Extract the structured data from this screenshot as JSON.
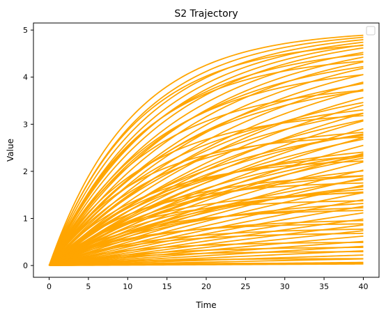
{
  "chart_data": {
    "type": "line",
    "title": "S2 Trajectory",
    "xlabel": "Time",
    "ylabel": "Value",
    "xlim": [
      -2,
      42
    ],
    "ylim": [
      -0.25,
      5.15
    ],
    "x_ticks": [
      0,
      5,
      10,
      15,
      20,
      25,
      30,
      35,
      40
    ],
    "y_ticks": [
      0,
      1,
      2,
      3,
      4,
      5
    ],
    "x_tick_labels": [
      "0",
      "5",
      "10",
      "15",
      "20",
      "25",
      "30",
      "35",
      "40"
    ],
    "y_tick_labels": [
      "0",
      "1",
      "2",
      "3",
      "4",
      "5"
    ],
    "line_color": "#ffa500",
    "legend": {
      "visible": true,
      "entries": [],
      "placement": "top-right"
    },
    "grid": false,
    "model": "y = A * (1 - exp(-t / tau)), t from 0 to 40",
    "series": [
      {
        "A": 5.0,
        "tau": 10.5
      },
      {
        "A": 5.0,
        "tau": 11.5
      },
      {
        "A": 5.0,
        "tau": 12.5
      },
      {
        "A": 5.0,
        "tau": 13.5
      },
      {
        "A": 5.0,
        "tau": 14.5
      },
      {
        "A": 5.0,
        "tau": 15.5
      },
      {
        "A": 5.0,
        "tau": 17
      },
      {
        "A": 5.0,
        "tau": 18.5
      },
      {
        "A": 5.0,
        "tau": 20
      },
      {
        "A": 5.0,
        "tau": 22
      },
      {
        "A": 5.0,
        "tau": 24
      },
      {
        "A": 5.0,
        "tau": 26.5
      },
      {
        "A": 5.0,
        "tau": 29
      },
      {
        "A": 5.0,
        "tau": 32
      },
      {
        "A": 5.0,
        "tau": 35
      },
      {
        "A": 5.0,
        "tau": 38.5
      },
      {
        "A": 5.0,
        "tau": 42
      },
      {
        "A": 5.0,
        "tau": 46
      },
      {
        "A": 5.0,
        "tau": 51
      },
      {
        "A": 5.0,
        "tau": 56
      },
      {
        "A": 5.0,
        "tau": 62
      },
      {
        "A": 5.0,
        "tau": 69
      },
      {
        "A": 5.0,
        "tau": 77
      },
      {
        "A": 5.0,
        "tau": 86
      },
      {
        "A": 5.0,
        "tau": 96
      },
      {
        "A": 5.0,
        "tau": 108
      },
      {
        "A": 5.0,
        "tau": 122
      },
      {
        "A": 5.0,
        "tau": 138
      },
      {
        "A": 5.0,
        "tau": 158
      },
      {
        "A": 5.0,
        "tau": 182
      },
      {
        "A": 5.0,
        "tau": 212
      },
      {
        "A": 5.0,
        "tau": 250
      },
      {
        "A": 5.0,
        "tau": 300
      },
      {
        "A": 5.0,
        "tau": 370
      },
      {
        "A": 5.0,
        "tau": 470
      },
      {
        "A": 5.0,
        "tau": 620
      },
      {
        "A": 5.0,
        "tau": 880
      },
      {
        "A": 5.0,
        "tau": 1400
      },
      {
        "A": 5.0,
        "tau": 3000
      },
      {
        "A": 5.0,
        "tau": 6000
      },
      {
        "A": 4.8,
        "tau": 11
      },
      {
        "A": 4.7,
        "tau": 13
      },
      {
        "A": 4.6,
        "tau": 16
      },
      {
        "A": 4.5,
        "tau": 12
      },
      {
        "A": 4.4,
        "tau": 19
      },
      {
        "A": 4.3,
        "tau": 14
      },
      {
        "A": 4.2,
        "tau": 23
      },
      {
        "A": 4.1,
        "tau": 17
      },
      {
        "A": 4.0,
        "tau": 27
      },
      {
        "A": 3.9,
        "tau": 13
      },
      {
        "A": 3.8,
        "tau": 21
      },
      {
        "A": 3.7,
        "tau": 31
      },
      {
        "A": 3.6,
        "tau": 16
      },
      {
        "A": 3.5,
        "tau": 25
      },
      {
        "A": 3.4,
        "tau": 36
      },
      {
        "A": 3.3,
        "tau": 12
      },
      {
        "A": 3.2,
        "tau": 20
      },
      {
        "A": 3.1,
        "tau": 29
      },
      {
        "A": 3.0,
        "tau": 14
      },
      {
        "A": 2.9,
        "tau": 24
      },
      {
        "A": 2.8,
        "tau": 11
      },
      {
        "A": 2.7,
        "tau": 18
      },
      {
        "A": 2.6,
        "tau": 33
      },
      {
        "A": 2.5,
        "tau": 15
      },
      {
        "A": 2.4,
        "tau": 22
      },
      {
        "A": 2.3,
        "tau": 12
      },
      {
        "A": 2.2,
        "tau": 28
      },
      {
        "A": 2.1,
        "tau": 17
      },
      {
        "A": 2.0,
        "tau": 13
      },
      {
        "A": 1.9,
        "tau": 21
      },
      {
        "A": 1.8,
        "tau": 11
      },
      {
        "A": 1.7,
        "tau": 16
      },
      {
        "A": 1.6,
        "tau": 12
      },
      {
        "A": 1.5,
        "tau": 19
      },
      {
        "A": 1.4,
        "tau": 10
      },
      {
        "A": 1.3,
        "tau": 14
      },
      {
        "A": 1.2,
        "tau": 11
      },
      {
        "A": 1.0,
        "tau": 13
      },
      {
        "A": 0.9,
        "tau": 10
      },
      {
        "A": 0.8,
        "tau": 12
      },
      {
        "A": 0.7,
        "tau": 11
      },
      {
        "A": 0.5,
        "tau": 10
      },
      {
        "A": 0.4,
        "tau": 12
      },
      {
        "A": 0.3,
        "tau": 10
      },
      {
        "A": 0.15,
        "tau": 11
      },
      {
        "A": 0.05,
        "tau": 10
      }
    ]
  }
}
